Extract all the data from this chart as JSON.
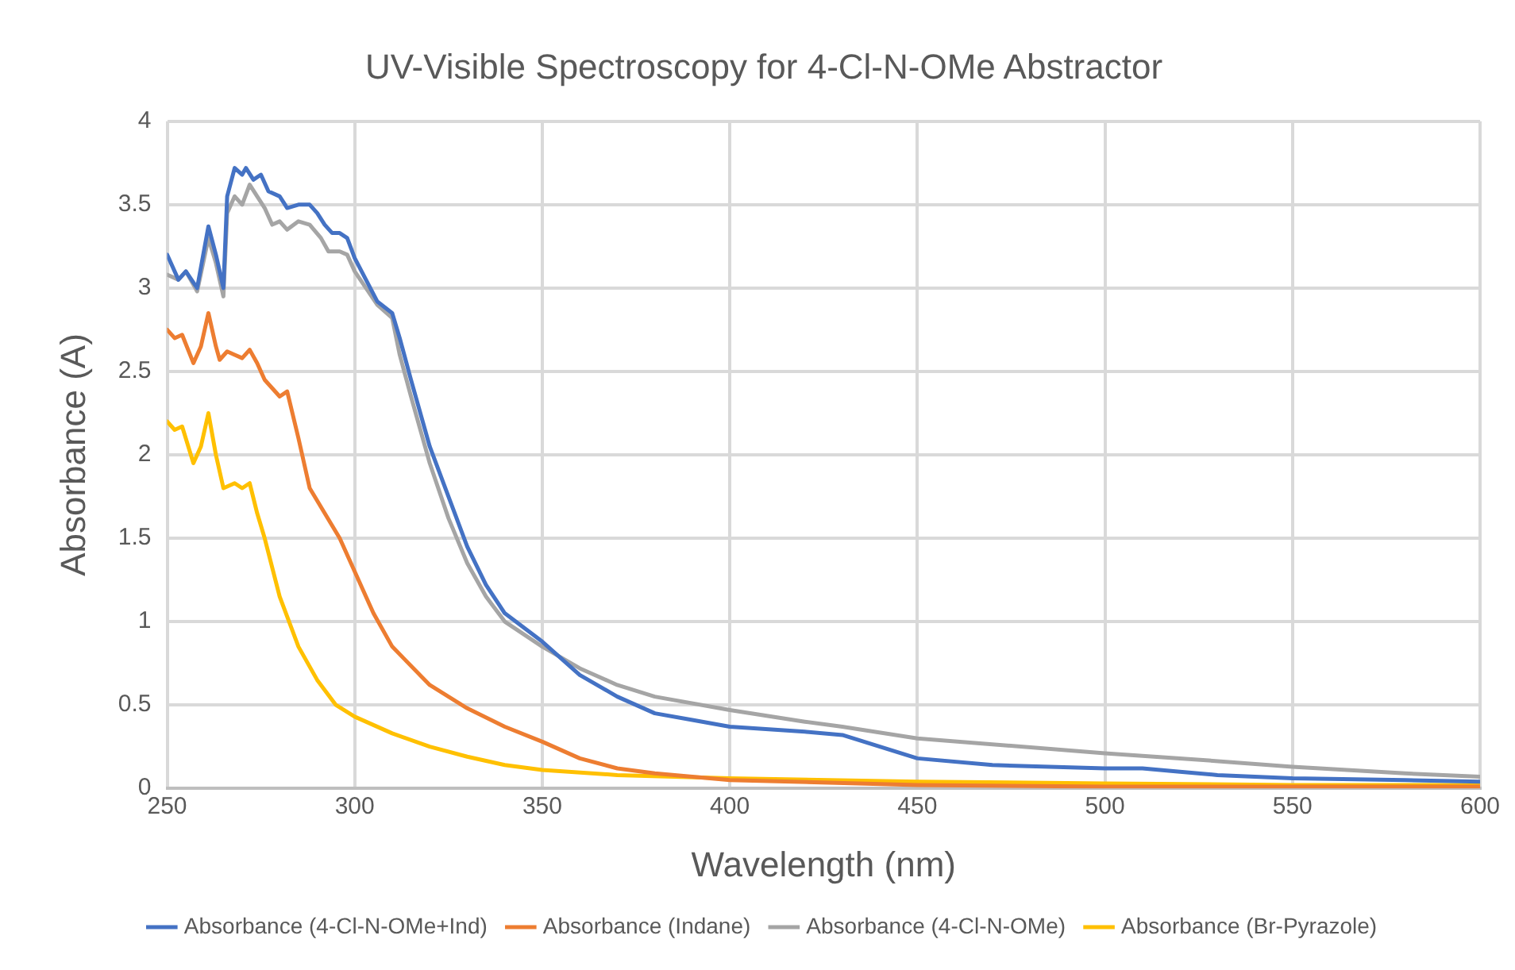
{
  "chart_data": {
    "type": "line",
    "title": "UV-Visible Spectroscopy for 4-Cl-N-OMe Abstractor",
    "xlabel": "Wavelength (nm)",
    "ylabel": "Absorbance (A)",
    "xlim": [
      250,
      600
    ],
    "xticks": [
      250,
      300,
      350,
      400,
      450,
      500,
      550,
      600
    ],
    "ylim": [
      0,
      4
    ],
    "yticks": [
      0,
      0.5,
      1,
      1.5,
      2,
      2.5,
      3,
      3.5,
      4
    ],
    "grid": true,
    "legend": "bottom",
    "marker": "none",
    "line_style": "solid",
    "series": [
      {
        "name": "Absorbance (4-Cl-N-OMe+Ind)",
        "color": "#4472c4",
        "x": [
          250,
          253,
          255,
          258,
          261,
          263,
          265,
          266,
          268,
          270,
          271,
          273,
          275,
          277,
          280,
          282,
          285,
          288,
          290,
          292,
          294,
          296,
          298,
          300,
          303,
          306,
          310,
          312,
          315,
          320,
          325,
          330,
          335,
          340,
          350,
          360,
          370,
          380,
          390,
          400,
          420,
          430,
          440,
          450,
          470,
          500,
          510,
          520,
          530,
          550,
          580,
          600
        ],
        "values": [
          3.2,
          3.05,
          3.1,
          3.0,
          3.37,
          3.2,
          3.0,
          3.55,
          3.72,
          3.68,
          3.72,
          3.65,
          3.68,
          3.58,
          3.55,
          3.48,
          3.5,
          3.5,
          3.45,
          3.38,
          3.33,
          3.33,
          3.3,
          3.18,
          3.05,
          2.92,
          2.85,
          2.7,
          2.45,
          2.05,
          1.75,
          1.45,
          1.22,
          1.05,
          0.88,
          0.68,
          0.55,
          0.45,
          0.41,
          0.37,
          0.34,
          0.32,
          0.25,
          0.18,
          0.14,
          0.12,
          0.12,
          0.1,
          0.08,
          0.06,
          0.05,
          0.04
        ]
      },
      {
        "name": "Absorbance (Indane)",
        "color": "#ed7d31",
        "x": [
          250,
          252,
          254,
          257,
          259,
          261,
          263,
          264,
          266,
          268,
          270,
          272,
          274,
          276,
          278,
          280,
          282,
          285,
          288,
          292,
          296,
          300,
          305,
          310,
          320,
          330,
          340,
          350,
          360,
          370,
          380,
          390,
          400,
          450,
          500,
          600
        ],
        "values": [
          2.75,
          2.7,
          2.72,
          2.55,
          2.65,
          2.85,
          2.65,
          2.57,
          2.62,
          2.6,
          2.58,
          2.63,
          2.55,
          2.45,
          2.4,
          2.35,
          2.38,
          2.1,
          1.8,
          1.65,
          1.5,
          1.3,
          1.05,
          0.85,
          0.62,
          0.48,
          0.37,
          0.28,
          0.18,
          0.12,
          0.09,
          0.07,
          0.05,
          0.02,
          0.01,
          0.01
        ]
      },
      {
        "name": "Absorbance (4-Cl-N-OMe)",
        "color": "#a5a5a5",
        "x": [
          250,
          253,
          255,
          258,
          261,
          263,
          265,
          266,
          268,
          270,
          272,
          274,
          276,
          278,
          280,
          282,
          285,
          288,
          291,
          293,
          296,
          298,
          300,
          303,
          306,
          310,
          312,
          315,
          320,
          325,
          330,
          335,
          340,
          350,
          360,
          370,
          380,
          400,
          420,
          430,
          450,
          500,
          520,
          550,
          580,
          600
        ],
        "values": [
          3.08,
          3.05,
          3.1,
          2.98,
          3.3,
          3.15,
          2.95,
          3.45,
          3.55,
          3.5,
          3.62,
          3.55,
          3.48,
          3.38,
          3.4,
          3.35,
          3.4,
          3.38,
          3.3,
          3.22,
          3.22,
          3.2,
          3.1,
          3.0,
          2.9,
          2.82,
          2.6,
          2.35,
          1.95,
          1.62,
          1.35,
          1.15,
          1.0,
          0.85,
          0.72,
          0.62,
          0.55,
          0.47,
          0.4,
          0.37,
          0.3,
          0.21,
          0.18,
          0.13,
          0.09,
          0.07
        ]
      },
      {
        "name": "Absorbance (Br-Pyrazole)",
        "color": "#ffc000",
        "x": [
          250,
          252,
          254,
          257,
          259,
          261,
          263,
          265,
          268,
          270,
          272,
          274,
          276,
          280,
          285,
          290,
          295,
          300,
          310,
          320,
          330,
          340,
          350,
          370,
          400,
          450,
          500,
          550,
          600
        ],
        "values": [
          2.2,
          2.15,
          2.17,
          1.95,
          2.05,
          2.25,
          2.0,
          1.8,
          1.83,
          1.8,
          1.83,
          1.65,
          1.5,
          1.15,
          0.85,
          0.65,
          0.5,
          0.43,
          0.33,
          0.25,
          0.19,
          0.14,
          0.11,
          0.08,
          0.06,
          0.04,
          0.03,
          0.02,
          0.02
        ]
      }
    ]
  }
}
